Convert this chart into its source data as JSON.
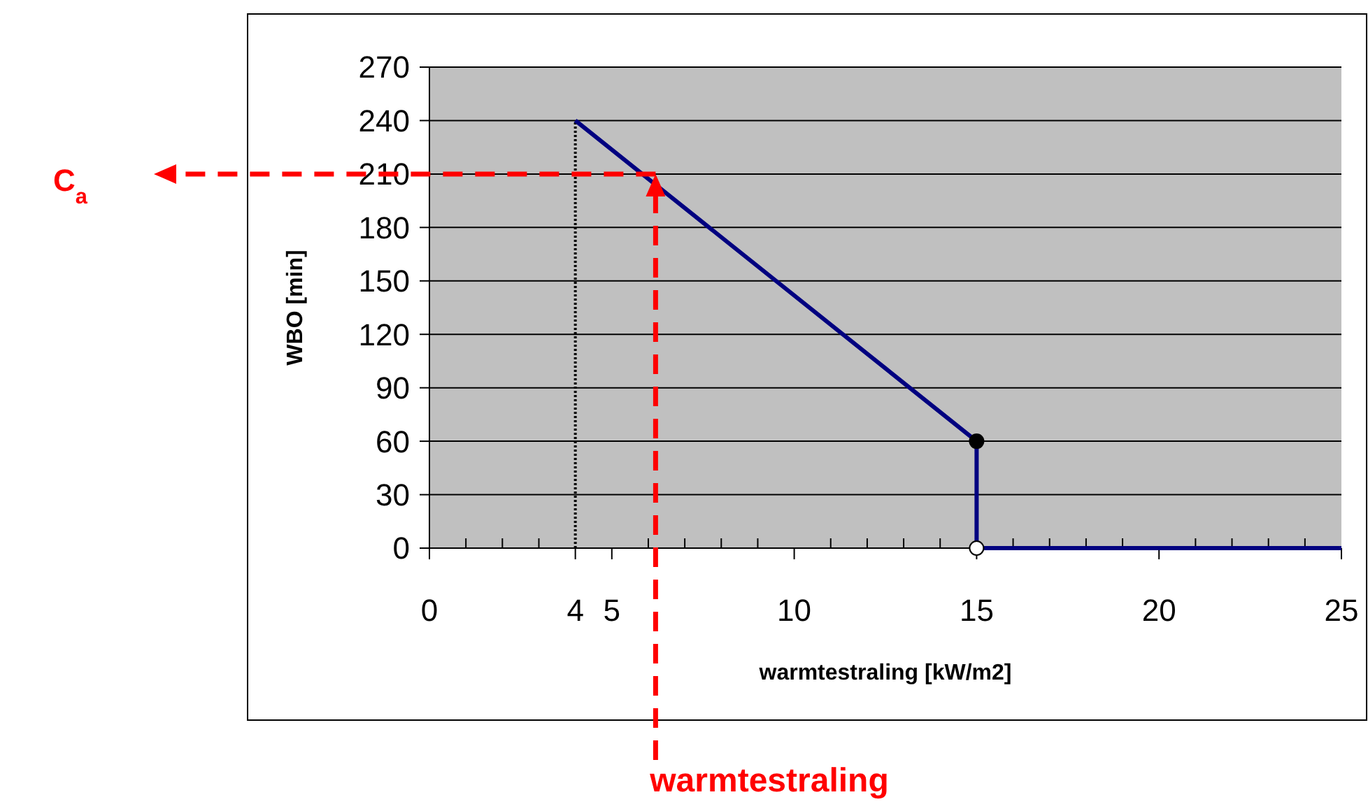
{
  "chart_data": {
    "type": "line",
    "xlabel": "warmtestraling [kW/m2]",
    "ylabel": "WBO [min]",
    "xlim": [
      0,
      25
    ],
    "ylim": [
      0,
      270
    ],
    "xticks": [
      0,
      {
        "value": 1,
        "label": null
      },
      {
        "value": 2,
        "label": null
      },
      {
        "value": 3,
        "label": null
      },
      4,
      5,
      {
        "value": 6,
        "label": null
      },
      {
        "value": 7,
        "label": null
      },
      {
        "value": 8,
        "label": null
      },
      {
        "value": 9,
        "label": null
      },
      10,
      {
        "value": 11,
        "label": null
      },
      {
        "value": 12,
        "label": null
      },
      {
        "value": 13,
        "label": null
      },
      {
        "value": 14,
        "label": null
      },
      15,
      {
        "value": 16,
        "label": null
      },
      {
        "value": 17,
        "label": null
      },
      {
        "value": 18,
        "label": null
      },
      {
        "value": 19,
        "label": null
      },
      20,
      {
        "value": 21,
        "label": null
      },
      {
        "value": 22,
        "label": null
      },
      {
        "value": 23,
        "label": null
      },
      {
        "value": 24,
        "label": null
      },
      25
    ],
    "yticks": [
      0,
      30,
      60,
      90,
      120,
      150,
      180,
      210,
      240,
      270
    ],
    "grid": "y",
    "series": [
      {
        "color": "#000000",
        "line_style": "dotted",
        "x": [
          4,
          4
        ],
        "values": [
          0,
          240
        ]
      },
      {
        "color": "#000080",
        "line_style": "solid",
        "x": [
          4,
          15,
          15,
          25
        ],
        "values": [
          240,
          60,
          0,
          0
        ]
      },
      {
        "type": "scatter",
        "marker": "circle",
        "colors": [
          "#000000",
          "#ffffff"
        ],
        "x": [
          15,
          15
        ],
        "values": [
          60,
          0
        ]
      }
    ],
    "ref_lines": [
      {
        "axis": "y",
        "value": 210,
        "label": "C$_{a}$",
        "color": "#ff0000",
        "line_style": "dashed"
      },
      {
        "axis": "x",
        "value": 6.2,
        "label": "warmtestraling",
        "color": "#ff0000",
        "line_style": "dashed"
      }
    ]
  }
}
